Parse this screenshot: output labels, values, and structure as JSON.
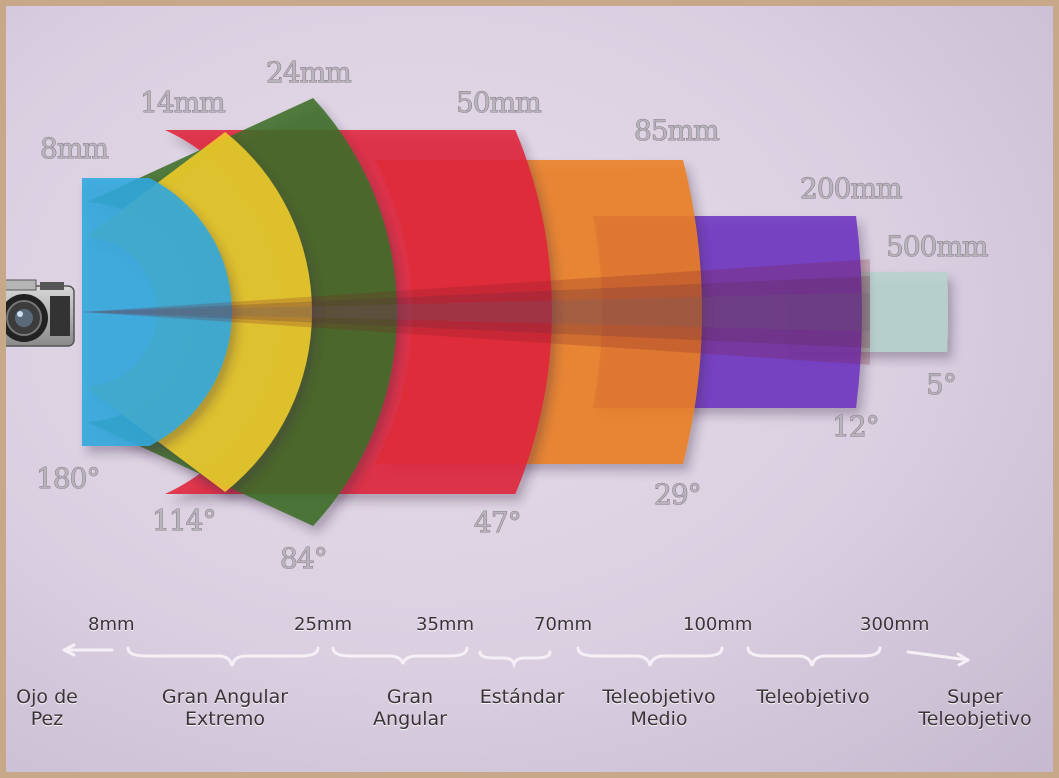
{
  "lenses": [
    {
      "focal": "8mm",
      "angle": "180°",
      "color": "#2fa8de"
    },
    {
      "focal": "14mm",
      "angle": "114°",
      "color": "#f0cc2a"
    },
    {
      "focal": "24mm",
      "angle": "84°",
      "color": "#3e6e28"
    },
    {
      "focal": "50mm",
      "angle": "47°",
      "color": "#e0243a"
    },
    {
      "focal": "85mm",
      "angle": "29°",
      "color": "#ec7f22"
    },
    {
      "focal": "200mm",
      "angle": "12°",
      "color": "#6e34c2"
    },
    {
      "focal": "500mm",
      "angle": "5°",
      "color": "#b7d1cc"
    }
  ],
  "scale_ticks": [
    "8mm",
    "25mm",
    "35mm",
    "70mm",
    "100mm",
    "300mm"
  ],
  "categories": [
    {
      "line1": "Ojo de",
      "line2": "Pez"
    },
    {
      "line1": "Gran Angular",
      "line2": "Extremo"
    },
    {
      "line1": "Gran",
      "line2": "Angular"
    },
    {
      "line1": "Estándar",
      "line2": ""
    },
    {
      "line1": "Teleobjetivo",
      "line2": "Medio"
    },
    {
      "line1": "Teleobjetivo",
      "line2": ""
    },
    {
      "line1": "Super",
      "line2": "Teleobjetivo"
    }
  ]
}
